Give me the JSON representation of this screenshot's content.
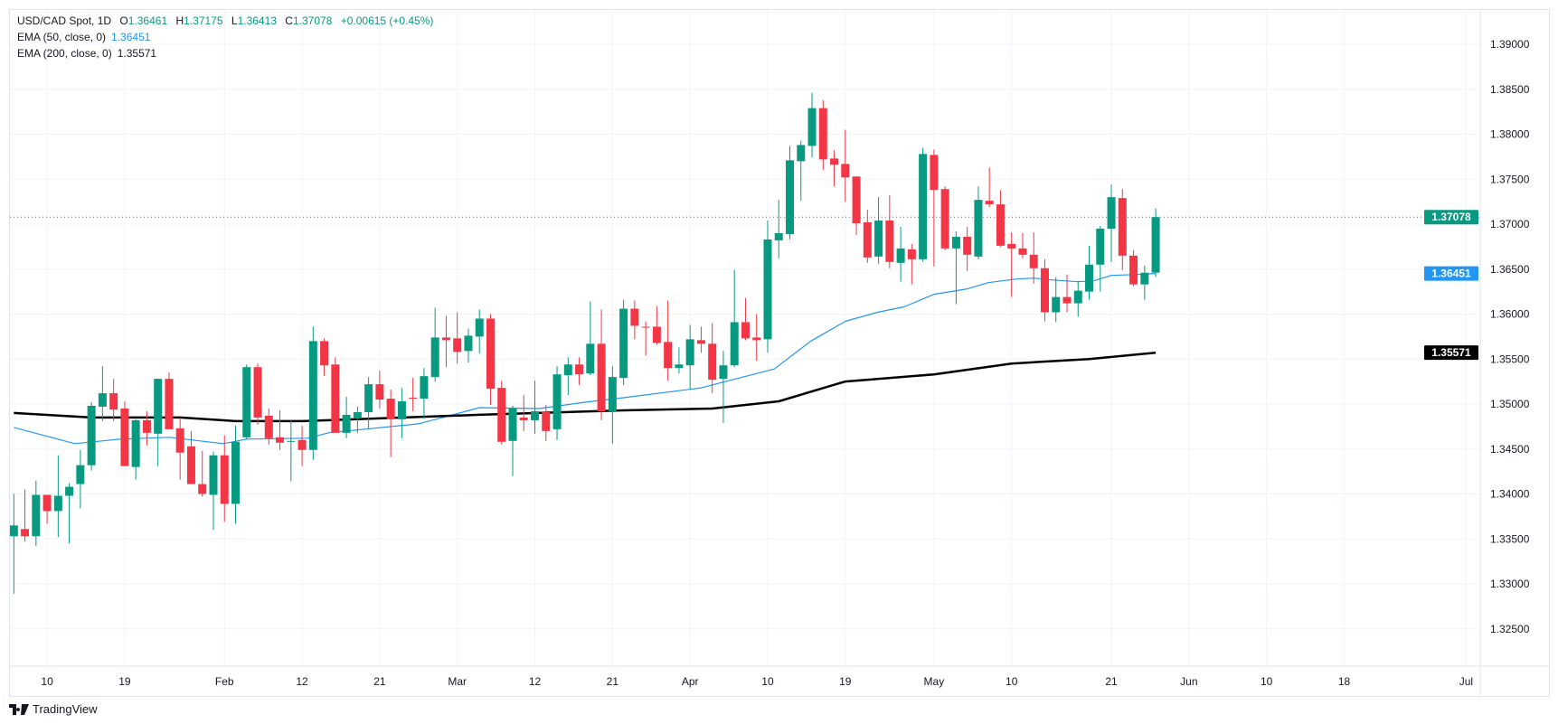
{
  "legend": {
    "symbol": "USD/CAD Spot, 1D",
    "o_label": "O",
    "o": "1.36461",
    "h_label": "H",
    "h": "1.37175",
    "l_label": "L",
    "l": "1.36413",
    "c_label": "C",
    "c": "1.37078",
    "change": "+0.00615 (+0.45%)",
    "ema50_label": "EMA (50, close, 0)",
    "ema50": "1.36451",
    "ema200_label": "EMA (200, close, 0)",
    "ema200": "1.35571"
  },
  "tags": {
    "last": "1.37078",
    "ema50": "1.36451",
    "ema200": "1.35571"
  },
  "branding": "TradingView",
  "colors": {
    "up": "#089981",
    "down": "#f23645",
    "ema50": "#2196f3",
    "ema200": "#000000",
    "grid": "#f0f3fa"
  },
  "chart_data": {
    "type": "candlestick",
    "title": "USD/CAD Spot, 1D",
    "ylim": [
      1.322,
      1.3935
    ],
    "yticks": [
      "1.39000",
      "1.38500",
      "1.38000",
      "1.37500",
      "1.37000",
      "1.36500",
      "1.36000",
      "1.35500",
      "1.35000",
      "1.34500",
      "1.34000",
      "1.33500",
      "1.33000",
      "1.32500"
    ],
    "xticks": [
      {
        "label": "10",
        "index": 3
      },
      {
        "label": "19",
        "index": 10
      },
      {
        "label": "Feb",
        "index": 19
      },
      {
        "label": "12",
        "index": 26
      },
      {
        "label": "21",
        "index": 33
      },
      {
        "label": "Mar",
        "index": 40
      },
      {
        "label": "12",
        "index": 47
      },
      {
        "label": "21",
        "index": 54
      },
      {
        "label": "Apr",
        "index": 61
      },
      {
        "label": "10",
        "index": 68
      },
      {
        "label": "19",
        "index": 75
      },
      {
        "label": "May",
        "index": 83
      },
      {
        "label": "10",
        "index": 90
      },
      {
        "label": "21",
        "index": 99
      },
      {
        "label": "Jun",
        "index": 106
      },
      {
        "label": "10",
        "index": 113
      },
      {
        "label": "18",
        "index": 120
      },
      {
        "label": "Jul",
        "index": 131
      }
    ],
    "last_price": 1.37078,
    "ohlc_columns": [
      "open",
      "high",
      "low",
      "close"
    ],
    "candles": [
      [
        1.3353,
        1.34,
        1.3289,
        1.3365
      ],
      [
        1.3361,
        1.3405,
        1.3347,
        1.3353
      ],
      [
        1.3353,
        1.3415,
        1.3342,
        1.3399
      ],
      [
        1.3399,
        1.3399,
        1.3367,
        1.3381
      ],
      [
        1.3381,
        1.3443,
        1.3352,
        1.3398
      ],
      [
        1.3398,
        1.3412,
        1.3345,
        1.3408
      ],
      [
        1.3411,
        1.3449,
        1.3384,
        1.3432
      ],
      [
        1.3432,
        1.3502,
        1.3426,
        1.3498
      ],
      [
        1.3497,
        1.3542,
        1.3481,
        1.3512
      ],
      [
        1.3512,
        1.3528,
        1.3481,
        1.3494
      ],
      [
        1.3495,
        1.3503,
        1.3431,
        1.3431
      ],
      [
        1.343,
        1.3483,
        1.3416,
        1.3482
      ],
      [
        1.3482,
        1.3492,
        1.3454,
        1.3468
      ],
      [
        1.3467,
        1.3528,
        1.3431,
        1.3528
      ],
      [
        1.3528,
        1.3535,
        1.3472,
        1.3472
      ],
      [
        1.3473,
        1.3485,
        1.3416,
        1.3446
      ],
      [
        1.3453,
        1.347,
        1.3411,
        1.3411
      ],
      [
        1.3411,
        1.3448,
        1.3397,
        1.34
      ],
      [
        1.3399,
        1.3447,
        1.336,
        1.3443
      ],
      [
        1.3443,
        1.3465,
        1.3369,
        1.3389
      ],
      [
        1.3389,
        1.3476,
        1.3367,
        1.3458
      ],
      [
        1.3463,
        1.3544,
        1.3461,
        1.3541
      ],
      [
        1.3541,
        1.3545,
        1.3477,
        1.3485
      ],
      [
        1.3487,
        1.3495,
        1.3455,
        1.3462
      ],
      [
        1.3463,
        1.3493,
        1.3449,
        1.3457
      ],
      [
        1.3458,
        1.3482,
        1.3414,
        1.3459
      ],
      [
        1.346,
        1.3476,
        1.3431,
        1.3449
      ],
      [
        1.3449,
        1.3586,
        1.3438,
        1.357
      ],
      [
        1.357,
        1.3573,
        1.3531,
        1.3543
      ],
      [
        1.3544,
        1.3552,
        1.3468,
        1.3468
      ],
      [
        1.3468,
        1.3508,
        1.3462,
        1.3488
      ],
      [
        1.3484,
        1.3497,
        1.3468,
        1.3491
      ],
      [
        1.3491,
        1.353,
        1.3473,
        1.3522
      ],
      [
        1.3522,
        1.3537,
        1.3495,
        1.3505
      ],
      [
        1.3506,
        1.3516,
        1.3441,
        1.3483
      ],
      [
        1.3483,
        1.3518,
        1.3462,
        1.3503
      ],
      [
        1.3507,
        1.3529,
        1.3492,
        1.3506
      ],
      [
        1.3506,
        1.354,
        1.3484,
        1.3531
      ],
      [
        1.353,
        1.3607,
        1.3525,
        1.3574
      ],
      [
        1.3574,
        1.3598,
        1.3541,
        1.3571
      ],
      [
        1.3573,
        1.3602,
        1.3545,
        1.3558
      ],
      [
        1.3559,
        1.3584,
        1.3546,
        1.3576
      ],
      [
        1.3575,
        1.3605,
        1.3556,
        1.3595
      ],
      [
        1.3595,
        1.36,
        1.3499,
        1.3517
      ],
      [
        1.3518,
        1.3526,
        1.3455,
        1.3458
      ],
      [
        1.3459,
        1.3498,
        1.342,
        1.3495
      ],
      [
        1.3485,
        1.351,
        1.347,
        1.3482
      ],
      [
        1.3482,
        1.3526,
        1.3467,
        1.3492
      ],
      [
        1.3491,
        1.3499,
        1.3459,
        1.347
      ],
      [
        1.3472,
        1.3542,
        1.346,
        1.3533
      ],
      [
        1.3532,
        1.3552,
        1.351,
        1.3544
      ],
      [
        1.3544,
        1.3552,
        1.3521,
        1.3533
      ],
      [
        1.3534,
        1.3614,
        1.3532,
        1.3567
      ],
      [
        1.3567,
        1.3605,
        1.3482,
        1.3492
      ],
      [
        1.3492,
        1.3542,
        1.3456,
        1.353
      ],
      [
        1.3529,
        1.3616,
        1.3521,
        1.3606
      ],
      [
        1.3606,
        1.3615,
        1.3572,
        1.3587
      ],
      [
        1.3586,
        1.3592,
        1.3554,
        1.3585
      ],
      [
        1.3586,
        1.3609,
        1.3566,
        1.3568
      ],
      [
        1.3569,
        1.3615,
        1.3526,
        1.354
      ],
      [
        1.354,
        1.3563,
        1.3534,
        1.3544
      ],
      [
        1.3543,
        1.3588,
        1.3516,
        1.3572
      ],
      [
        1.3571,
        1.3586,
        1.3557,
        1.3567
      ],
      [
        1.3567,
        1.359,
        1.3512,
        1.3527
      ],
      [
        1.3528,
        1.3559,
        1.3479,
        1.3543
      ],
      [
        1.3543,
        1.3649,
        1.3541,
        1.3591
      ],
      [
        1.3591,
        1.3618,
        1.3571,
        1.3573
      ],
      [
        1.3574,
        1.36,
        1.3548,
        1.3571
      ],
      [
        1.3572,
        1.3704,
        1.3557,
        1.3683
      ],
      [
        1.3682,
        1.3727,
        1.3662,
        1.369
      ],
      [
        1.3689,
        1.3787,
        1.3683,
        1.3771
      ],
      [
        1.377,
        1.3793,
        1.3726,
        1.3788
      ],
      [
        1.3787,
        1.3846,
        1.3774,
        1.3829
      ],
      [
        1.3829,
        1.3838,
        1.376,
        1.3772
      ],
      [
        1.3773,
        1.3782,
        1.3742,
        1.3766
      ],
      [
        1.3767,
        1.3805,
        1.3725,
        1.3752
      ],
      [
        1.3753,
        1.3753,
        1.3688,
        1.3701
      ],
      [
        1.3702,
        1.3716,
        1.3657,
        1.3663
      ],
      [
        1.3664,
        1.373,
        1.3656,
        1.3704
      ],
      [
        1.3704,
        1.3732,
        1.3651,
        1.3658
      ],
      [
        1.3657,
        1.3697,
        1.3636,
        1.3673
      ],
      [
        1.3672,
        1.3678,
        1.3633,
        1.3661
      ],
      [
        1.3661,
        1.3785,
        1.3658,
        1.3778
      ],
      [
        1.3777,
        1.3783,
        1.3653,
        1.3738
      ],
      [
        1.3739,
        1.3742,
        1.3671,
        1.3673
      ],
      [
        1.3673,
        1.3692,
        1.3611,
        1.3686
      ],
      [
        1.3686,
        1.3697,
        1.3648,
        1.3666
      ],
      [
        1.3664,
        1.3742,
        1.3661,
        1.3727
      ],
      [
        1.3726,
        1.3763,
        1.3719,
        1.3722
      ],
      [
        1.3722,
        1.3738,
        1.3675,
        1.3676
      ],
      [
        1.3678,
        1.3691,
        1.3619,
        1.3673
      ],
      [
        1.3673,
        1.369,
        1.3662,
        1.3666
      ],
      [
        1.3666,
        1.3691,
        1.3634,
        1.3651
      ],
      [
        1.3651,
        1.3661,
        1.3592,
        1.3602
      ],
      [
        1.3602,
        1.3641,
        1.3591,
        1.3619
      ],
      [
        1.3619,
        1.3644,
        1.3602,
        1.3612
      ],
      [
        1.3612,
        1.3637,
        1.3597,
        1.3626
      ],
      [
        1.3625,
        1.3676,
        1.3616,
        1.3655
      ],
      [
        1.3655,
        1.3698,
        1.3625,
        1.3695
      ],
      [
        1.3695,
        1.3744,
        1.3658,
        1.373
      ],
      [
        1.3729,
        1.3739,
        1.3649,
        1.3665
      ],
      [
        1.3665,
        1.3671,
        1.3631,
        1.3633
      ],
      [
        1.3633,
        1.3654,
        1.3616,
        1.3646
      ],
      [
        1.36461,
        1.37175,
        1.36413,
        1.37078
      ]
    ],
    "series": [
      {
        "name": "EMA (50, close, 0)",
        "points": [
          [
            0,
            1.3474
          ],
          [
            5.5,
            1.3456
          ],
          [
            9.6,
            1.3461
          ],
          [
            14,
            1.3463
          ],
          [
            18.9,
            1.3456
          ],
          [
            21,
            1.3461
          ],
          [
            26.5,
            1.3462
          ],
          [
            28.4,
            1.3468
          ],
          [
            36.5,
            1.3478
          ],
          [
            39.3,
            1.3487
          ],
          [
            42,
            1.3496
          ],
          [
            47.4,
            1.3495
          ],
          [
            51.5,
            1.3502
          ],
          [
            55,
            1.3507
          ],
          [
            62,
            1.3518
          ],
          [
            68.6,
            1.3539
          ],
          [
            71.9,
            1.357
          ],
          [
            75,
            1.3592
          ],
          [
            77.9,
            1.3602
          ],
          [
            80.3,
            1.3608
          ],
          [
            83,
            1.3622
          ],
          [
            86,
            1.3628
          ],
          [
            87.9,
            1.3635
          ],
          [
            90.4,
            1.3639
          ],
          [
            92,
            1.364
          ],
          [
            93.6,
            1.3638
          ],
          [
            96,
            1.3636
          ],
          [
            97.4,
            1.3637
          ],
          [
            99,
            1.3643
          ],
          [
            101.3,
            1.3644
          ],
          [
            103,
            1.36451
          ]
        ]
      },
      {
        "name": "EMA (200, close, 0)",
        "points": [
          [
            0,
            1.349
          ],
          [
            7,
            1.3485
          ],
          [
            15,
            1.3485
          ],
          [
            20,
            1.3481
          ],
          [
            26,
            1.3481
          ],
          [
            42,
            1.3488
          ],
          [
            55,
            1.3493
          ],
          [
            63,
            1.3495
          ],
          [
            69,
            1.3503
          ],
          [
            75,
            1.3525
          ],
          [
            83,
            1.3533
          ],
          [
            90,
            1.3545
          ],
          [
            97,
            1.355
          ],
          [
            103,
            1.35571
          ]
        ]
      }
    ]
  }
}
